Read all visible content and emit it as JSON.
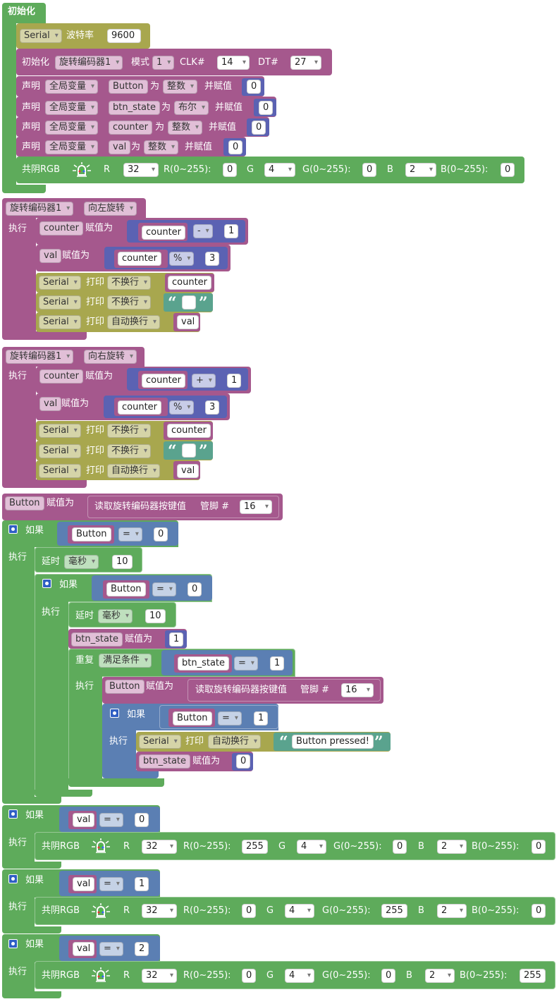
{
  "labels": {
    "init": "初始化",
    "baud": "波特率",
    "init_encoder": "初始化",
    "mode": "模式",
    "clk": "CLK#",
    "dt": "DT#",
    "declare": "声明",
    "as": "为",
    "assign_init": "并赋值",
    "assign": "赋值为",
    "cc_rgb": "共阴RGB",
    "r": "R",
    "g": "G",
    "b": "B",
    "r_range": "R(0~255):",
    "g_range": "G(0~255):",
    "b_range": "B(0~255):",
    "exec": "执行",
    "print": "打印",
    "if": "如果",
    "delay": "延时",
    "repeat": "重复",
    "read_btn": "读取旋转编码器按键值",
    "pin": "管脚 #"
  },
  "dropdowns": {
    "serial": "Serial",
    "encoder": "旋转编码器1",
    "mode_val": "1",
    "scope": "全局变量",
    "type_int": "整数",
    "type_bool": "布尔",
    "rotate_left": "向左旋转",
    "rotate_right": "向右旋转",
    "no_newline": "不换行",
    "auto_newline": "自动换行",
    "ms": "毫秒",
    "while_cond": "满足条件",
    "op_eq": "=",
    "op_minus": "-",
    "op_plus": "+",
    "op_mod": "%",
    "pin_r": "32",
    "pin_g": "4",
    "pin_b": "2",
    "clk_pin": "14",
    "dt_pin": "27",
    "btn_pin": "16"
  },
  "vars": {
    "button": "Button",
    "btn_state": "btn_state",
    "counter": "counter",
    "val": "val"
  },
  "numbers": {
    "baud": "9600",
    "zero": "0",
    "one": "1",
    "two": "2",
    "three": "3",
    "ten": "10",
    "full": "255"
  },
  "strings": {
    "empty": "",
    "pressed": "Button pressed!"
  },
  "colors": {
    "serial_block": "#a8a74e",
    "variable_block": "#a5588d",
    "logic_block": "#5b7fb3",
    "loop_block": "#5eab5b",
    "text_block": "#5aa38e"
  }
}
